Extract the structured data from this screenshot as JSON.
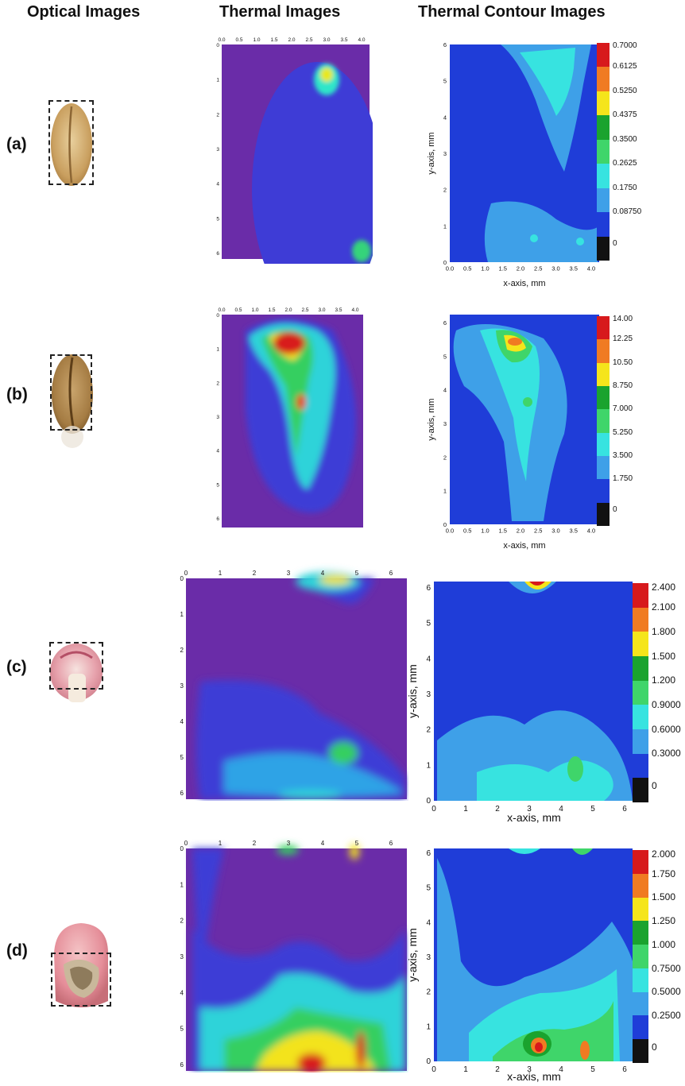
{
  "headers": {
    "optical": "Optical Images",
    "thermal": "Thermal Images",
    "contour": "Thermal Contour Images"
  },
  "rows": [
    {
      "label": "(a)",
      "thermal_x_ticks": [
        "0.0",
        "0.5",
        "1.0",
        "1.5",
        "2.0",
        "2.5",
        "3.0",
        "3.5",
        "4.0"
      ],
      "thermal_y_ticks": [
        "0",
        "1",
        "2",
        "3",
        "4",
        "5",
        "6"
      ],
      "contour_x_ticks": [
        "0.0",
        "0.5",
        "1.0",
        "1.5",
        "2.0",
        "2.5",
        "3.0",
        "3.5",
        "4.0"
      ],
      "contour_y_ticks": [
        "0",
        "1",
        "2",
        "3",
        "4",
        "5",
        "6"
      ],
      "contour_xlabel": "x-axis, mm",
      "contour_ylabel": "y-axis, mm",
      "colorbar_ticks": [
        "0.7000",
        "0.6125",
        "0.5250",
        "0.4375",
        "0.3500",
        "0.2625",
        "0.1750",
        "0.08750",
        "0"
      ]
    },
    {
      "label": "(b)",
      "thermal_x_ticks": [
        "0.0",
        "0.5",
        "1.0",
        "1.5",
        "2.0",
        "2.5",
        "3.0",
        "3.5",
        "4.0"
      ],
      "thermal_y_ticks": [
        "0",
        "1",
        "2",
        "3",
        "4",
        "5",
        "6"
      ],
      "contour_x_ticks": [
        "0.0",
        "0.5",
        "1.0",
        "1.5",
        "2.0",
        "2.5",
        "3.0",
        "3.5",
        "4.0"
      ],
      "contour_y_ticks": [
        "0",
        "1",
        "2",
        "3",
        "4",
        "5",
        "6"
      ],
      "contour_xlabel": "x-axis, mm",
      "contour_ylabel": "y-axis, mm",
      "colorbar_ticks": [
        "14.00",
        "12.25",
        "10.50",
        "8.750",
        "7.000",
        "5.250",
        "3.500",
        "1.750",
        "0"
      ]
    },
    {
      "label": "(c)",
      "thermal_x_ticks": [
        "0",
        "1",
        "2",
        "3",
        "4",
        "5",
        "6"
      ],
      "thermal_y_ticks": [
        "0",
        "1",
        "2",
        "3",
        "4",
        "5",
        "6"
      ],
      "contour_x_ticks": [
        "0",
        "1",
        "2",
        "3",
        "4",
        "5",
        "6"
      ],
      "contour_y_ticks": [
        "0",
        "1",
        "2",
        "3",
        "4",
        "5",
        "6"
      ],
      "contour_xlabel": "x-axis, mm",
      "contour_ylabel": "y-axis, mm",
      "colorbar_ticks": [
        "2.400",
        "2.100",
        "1.800",
        "1.500",
        "1.200",
        "0.9000",
        "0.6000",
        "0.3000",
        "0"
      ]
    },
    {
      "label": "(d)",
      "thermal_x_ticks": [
        "0",
        "1",
        "2",
        "3",
        "4",
        "5",
        "6"
      ],
      "thermal_y_ticks": [
        "0",
        "1",
        "2",
        "3",
        "4",
        "5",
        "6"
      ],
      "contour_x_ticks": [
        "0",
        "1",
        "2",
        "3",
        "4",
        "5",
        "6"
      ],
      "contour_y_ticks": [
        "0",
        "1",
        "2",
        "3",
        "4",
        "5",
        "6"
      ],
      "contour_xlabel": "x-axis, mm",
      "contour_ylabel": "y-axis, mm",
      "colorbar_ticks": [
        "2.000",
        "1.750",
        "1.500",
        "1.250",
        "1.000",
        "0.7500",
        "0.5000",
        "0.2500",
        "0"
      ]
    }
  ],
  "colors": {
    "background_purple": "#6a2ca8",
    "contour_blue": "#1f3dd8",
    "colorbar": [
      "#d7191c",
      "#f07b22",
      "#f5e51b",
      "#1aa32e",
      "#3fd56a",
      "#37e3e0",
      "#3ea0e8",
      "#1f3dd8",
      "#111111"
    ]
  }
}
